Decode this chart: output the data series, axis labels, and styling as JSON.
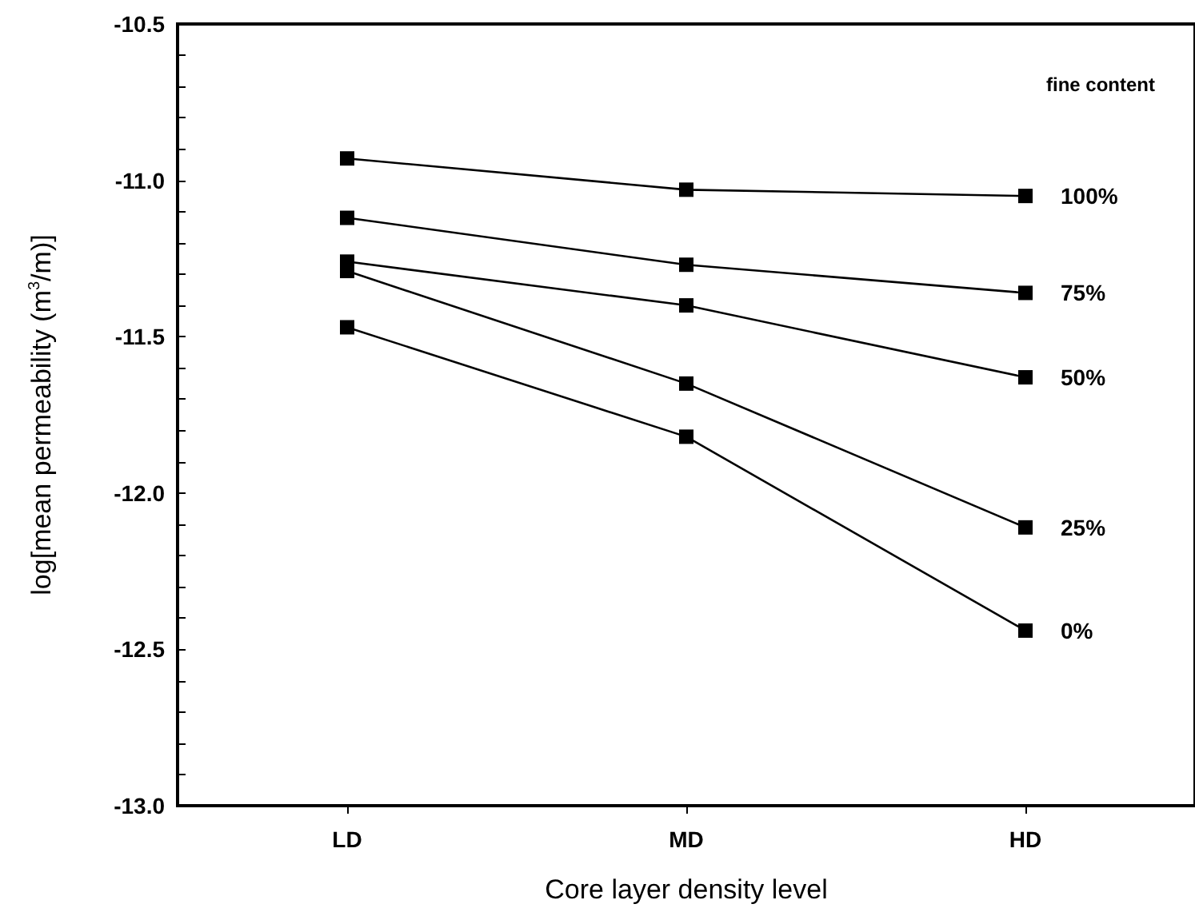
{
  "chart_data": {
    "type": "line",
    "xlabel": "Core layer density level",
    "ylabel": "log[mean permeability (m$^{3}$/m)]",
    "legend_title": "fine content",
    "categories": [
      "LD",
      "MD",
      "HD"
    ],
    "series": [
      {
        "name": "100%",
        "color": "#000000",
        "values": [
          -10.93,
          -11.03,
          -11.05
        ]
      },
      {
        "name": "75%",
        "color": "#000000",
        "values": [
          -11.12,
          -11.27,
          -11.36
        ]
      },
      {
        "name": "50%",
        "color": "#000000",
        "values": [
          -11.26,
          -11.4,
          -11.63
        ]
      },
      {
        "name": "25%",
        "color": "#000000",
        "values": [
          -11.29,
          -11.65,
          -12.11
        ]
      },
      {
        "name": "0%",
        "color": "#000000",
        "values": [
          -11.47,
          -11.82,
          -12.44
        ]
      }
    ],
    "ylim": [
      -13.0,
      -10.5
    ],
    "yticks": [
      {
        "value": -13.0,
        "label": "-13.0"
      },
      {
        "value": -12.5,
        "label": "-12.5"
      },
      {
        "value": -12.0,
        "label": "-12.0"
      },
      {
        "value": -11.5,
        "label": "-11.5"
      },
      {
        "value": -11.0,
        "label": "-11.0"
      },
      {
        "value": -10.5,
        "label": "-10.5"
      }
    ],
    "marker": "square",
    "line_style": "solid",
    "grid": false,
    "legend": false
  }
}
